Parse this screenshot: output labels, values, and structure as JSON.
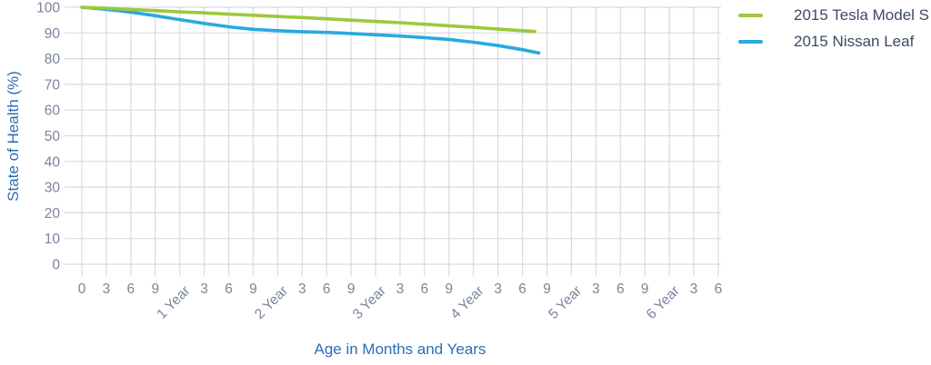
{
  "chart_data": {
    "type": "line",
    "title": "",
    "xlabel": "Age in Months and Years",
    "ylabel": "State of Health (%)",
    "ylim": [
      0,
      100
    ],
    "xlim_months": [
      0,
      78
    ],
    "grid": true,
    "legend_position": "top-right",
    "y_ticks": [
      100,
      90,
      80,
      70,
      60,
      50,
      40,
      30,
      20,
      10,
      0
    ],
    "x_ticks": [
      {
        "label": "0",
        "months": 0,
        "year_tick": false
      },
      {
        "label": "3",
        "months": 3,
        "year_tick": false
      },
      {
        "label": "6",
        "months": 6,
        "year_tick": false
      },
      {
        "label": "9",
        "months": 9,
        "year_tick": false
      },
      {
        "label": "1 Year",
        "months": 12,
        "year_tick": true
      },
      {
        "label": "3",
        "months": 15,
        "year_tick": false
      },
      {
        "label": "6",
        "months": 18,
        "year_tick": false
      },
      {
        "label": "9",
        "months": 21,
        "year_tick": false
      },
      {
        "label": "2 Year",
        "months": 24,
        "year_tick": true
      },
      {
        "label": "3",
        "months": 27,
        "year_tick": false
      },
      {
        "label": "6",
        "months": 30,
        "year_tick": false
      },
      {
        "label": "9",
        "months": 33,
        "year_tick": false
      },
      {
        "label": "3 Year",
        "months": 36,
        "year_tick": true
      },
      {
        "label": "3",
        "months": 39,
        "year_tick": false
      },
      {
        "label": "6",
        "months": 42,
        "year_tick": false
      },
      {
        "label": "9",
        "months": 45,
        "year_tick": false
      },
      {
        "label": "4 Year",
        "months": 48,
        "year_tick": true
      },
      {
        "label": "3",
        "months": 51,
        "year_tick": false
      },
      {
        "label": "6",
        "months": 54,
        "year_tick": false
      },
      {
        "label": "9",
        "months": 57,
        "year_tick": false
      },
      {
        "label": "5 Year",
        "months": 60,
        "year_tick": true
      },
      {
        "label": "3",
        "months": 63,
        "year_tick": false
      },
      {
        "label": "6",
        "months": 66,
        "year_tick": false
      },
      {
        "label": "9",
        "months": 69,
        "year_tick": false
      },
      {
        "label": "6 Year",
        "months": 72,
        "year_tick": true
      },
      {
        "label": "3",
        "months": 75,
        "year_tick": false
      },
      {
        "label": "6",
        "months": 78,
        "year_tick": false
      }
    ],
    "series": [
      {
        "id": "tesla",
        "name": "2015 Tesla Model S",
        "color": "#9cc83b",
        "points": [
          [
            0,
            100
          ],
          [
            3,
            99.6
          ],
          [
            6,
            99.1
          ],
          [
            9,
            98.7
          ],
          [
            12,
            98.2
          ],
          [
            15,
            97.8
          ],
          [
            18,
            97.3
          ],
          [
            21,
            96.9
          ],
          [
            24,
            96.4
          ],
          [
            27,
            96.0
          ],
          [
            30,
            95.5
          ],
          [
            33,
            95.0
          ],
          [
            36,
            94.5
          ],
          [
            39,
            94.0
          ],
          [
            42,
            93.4
          ],
          [
            45,
            92.8
          ],
          [
            48,
            92.2
          ],
          [
            51,
            91.5
          ],
          [
            54,
            90.9
          ],
          [
            55.5,
            90.6
          ]
        ]
      },
      {
        "id": "leaf",
        "name": "2015 Nissan Leaf",
        "color": "#29a9e0",
        "points": [
          [
            0,
            100
          ],
          [
            3,
            99.2
          ],
          [
            6,
            98.1
          ],
          [
            9,
            96.7
          ],
          [
            12,
            95.2
          ],
          [
            15,
            93.7
          ],
          [
            18,
            92.4
          ],
          [
            21,
            91.4
          ],
          [
            24,
            90.9
          ],
          [
            27,
            90.5
          ],
          [
            30,
            90.2
          ],
          [
            33,
            89.8
          ],
          [
            36,
            89.3
          ],
          [
            39,
            88.8
          ],
          [
            42,
            88.2
          ],
          [
            45,
            87.5
          ],
          [
            48,
            86.4
          ],
          [
            51,
            85.1
          ],
          [
            54,
            83.5
          ],
          [
            56,
            82.2
          ]
        ]
      }
    ]
  },
  "colors": {
    "grid": "#d8dae3",
    "tick_label": "#7a849e",
    "axis_title": "#2e6cb3",
    "legend_text": "#3c4a66",
    "background": "#ffffff"
  }
}
